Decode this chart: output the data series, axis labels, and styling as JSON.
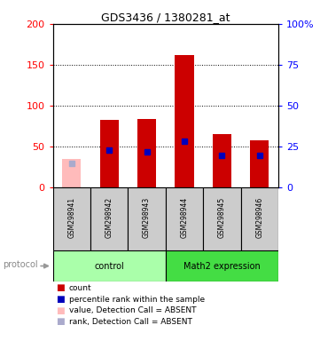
{
  "title": "GDS3436 / 1380281_at",
  "samples": [
    "GSM298941",
    "GSM298942",
    "GSM298943",
    "GSM298944",
    "GSM298945",
    "GSM298946"
  ],
  "count_values": [
    null,
    83,
    84,
    162,
    65,
    58
  ],
  "count_absent": [
    35,
    null,
    null,
    null,
    null,
    null
  ],
  "rank_values": [
    null,
    46,
    44,
    57,
    39,
    39
  ],
  "rank_absent": [
    29,
    null,
    null,
    null,
    null,
    null
  ],
  "ylim_left": [
    0,
    200
  ],
  "ylim_right": [
    0,
    100
  ],
  "left_ticks": [
    0,
    50,
    100,
    150,
    200
  ],
  "right_ticks": [
    0,
    25,
    50,
    75,
    100
  ],
  "right_tick_labels": [
    "0",
    "25",
    "50",
    "75",
    "100%"
  ],
  "color_count": "#cc0000",
  "color_count_absent": "#ffbbbb",
  "color_rank": "#0000bb",
  "color_rank_absent": "#aaaacc",
  "legend_items": [
    {
      "color": "#cc0000",
      "label": "count"
    },
    {
      "color": "#0000bb",
      "label": "percentile rank within the sample"
    },
    {
      "color": "#ffbbbb",
      "label": "value, Detection Call = ABSENT"
    },
    {
      "color": "#aaaacc",
      "label": "rank, Detection Call = ABSENT"
    }
  ],
  "group_control_color": "#aaffaa",
  "group_math2_color": "#44dd44",
  "sample_box_color": "#cccccc",
  "background_color": "#ffffff",
  "n_control": 3,
  "n_math2": 3
}
